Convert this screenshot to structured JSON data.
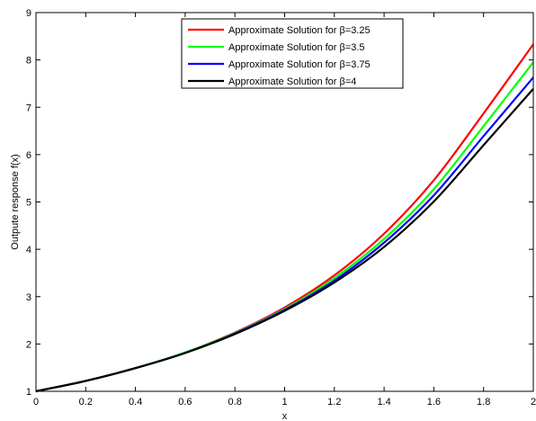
{
  "chart_data": {
    "type": "line",
    "xlabel": "x",
    "ylabel": "Outpute response f(x)",
    "xlim": [
      0,
      2
    ],
    "ylim": [
      1,
      9
    ],
    "xticks": [
      "0",
      "0.2",
      "0.4",
      "0.6",
      "0.8",
      "1",
      "1.2",
      "1.4",
      "1.6",
      "1.8",
      "2"
    ],
    "yticks": [
      "1",
      "2",
      "3",
      "4",
      "5",
      "6",
      "7",
      "8",
      "9"
    ],
    "grid": false,
    "legend_position": "top-center",
    "x": [
      0,
      0.2,
      0.4,
      0.6,
      0.8,
      1.0,
      1.2,
      1.4,
      1.6,
      1.8,
      2.0
    ],
    "series": [
      {
        "name": "Approximate Solution for β=3.25",
        "color": "#ff0000",
        "values": [
          1.0,
          1.22,
          1.49,
          1.82,
          2.24,
          2.77,
          3.45,
          4.33,
          5.46,
          6.87,
          8.33
        ]
      },
      {
        "name": "Approximate Solution for β=3.5",
        "color": "#00ff00",
        "values": [
          1.0,
          1.22,
          1.49,
          1.82,
          2.23,
          2.74,
          3.39,
          4.22,
          5.27,
          6.6,
          7.95
        ]
      },
      {
        "name": "Approximate Solution for β=3.75",
        "color": "#0000ff",
        "values": [
          1.0,
          1.22,
          1.49,
          1.81,
          2.22,
          2.72,
          3.34,
          4.14,
          5.14,
          6.39,
          7.63
        ]
      },
      {
        "name": "Approximate Solution for β=4",
        "color": "#000000",
        "values": [
          1.0,
          1.22,
          1.49,
          1.81,
          2.21,
          2.7,
          3.3,
          4.05,
          5.01,
          6.2,
          7.39
        ]
      }
    ]
  }
}
